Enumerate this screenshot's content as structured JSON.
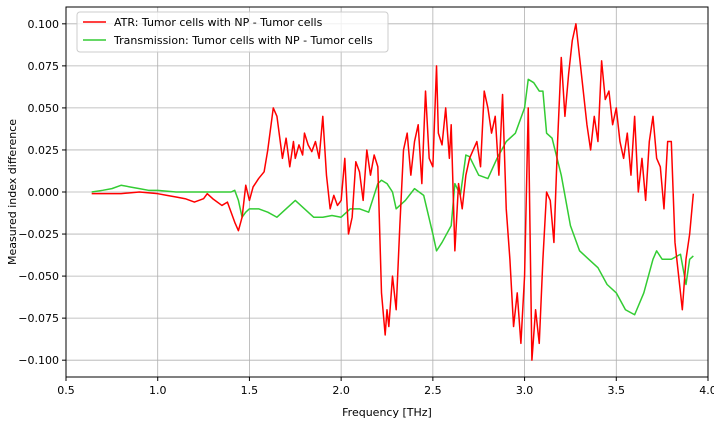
{
  "chart_data": {
    "type": "line",
    "title": "",
    "xlabel": "Frequency [THz]",
    "ylabel": "Measured index difference",
    "xlim": [
      0.5,
      4.0
    ],
    "ylim": [
      -0.11,
      0.11
    ],
    "x_ticks": [
      0.5,
      1.0,
      1.5,
      2.0,
      2.5,
      3.0,
      3.5,
      4.0
    ],
    "x_tick_labels": [
      "0.5",
      "1.0",
      "1.5",
      "2.0",
      "2.5",
      "3.0",
      "3.5",
      "4.0"
    ],
    "y_ticks": [
      -0.1,
      -0.075,
      -0.05,
      -0.025,
      0.0,
      0.025,
      0.05,
      0.075,
      0.1
    ],
    "y_tick_labels": [
      "−0.100",
      "−0.075",
      "−0.050",
      "−0.025",
      "0.000",
      "0.025",
      "0.050",
      "0.075",
      "0.100"
    ],
    "grid": true,
    "legend_position": "top-left",
    "series": [
      {
        "name": "ATR: Tumor cells with NP - Tumor cells",
        "color": "#ff0000",
        "x": [
          0.64,
          0.7,
          0.8,
          0.9,
          1.0,
          1.05,
          1.1,
          1.15,
          1.2,
          1.25,
          1.27,
          1.3,
          1.35,
          1.38,
          1.42,
          1.44,
          1.46,
          1.48,
          1.5,
          1.52,
          1.55,
          1.58,
          1.6,
          1.63,
          1.65,
          1.68,
          1.7,
          1.72,
          1.74,
          1.75,
          1.77,
          1.79,
          1.8,
          1.82,
          1.84,
          1.86,
          1.88,
          1.9,
          1.92,
          1.94,
          1.96,
          1.98,
          2.0,
          2.02,
          2.04,
          2.06,
          2.08,
          2.1,
          2.12,
          2.14,
          2.16,
          2.18,
          2.2,
          2.22,
          2.24,
          2.25,
          2.26,
          2.28,
          2.3,
          2.32,
          2.34,
          2.36,
          2.38,
          2.4,
          2.42,
          2.44,
          2.46,
          2.48,
          2.5,
          2.52,
          2.53,
          2.55,
          2.57,
          2.59,
          2.6,
          2.62,
          2.64,
          2.66,
          2.68,
          2.7,
          2.72,
          2.74,
          2.76,
          2.78,
          2.8,
          2.82,
          2.84,
          2.86,
          2.88,
          2.9,
          2.92,
          2.94,
          2.96,
          2.98,
          3.0,
          3.02,
          3.04,
          3.06,
          3.08,
          3.1,
          3.12,
          3.14,
          3.16,
          3.18,
          3.2,
          3.22,
          3.24,
          3.26,
          3.28,
          3.3,
          3.32,
          3.34,
          3.36,
          3.38,
          3.4,
          3.42,
          3.44,
          3.46,
          3.48,
          3.5,
          3.52,
          3.54,
          3.56,
          3.58,
          3.6,
          3.62,
          3.64,
          3.66,
          3.68,
          3.7,
          3.72,
          3.74,
          3.76,
          3.78,
          3.8,
          3.82,
          3.84,
          3.86,
          3.88,
          3.9,
          3.92
        ],
        "y": [
          -0.001,
          -0.001,
          -0.001,
          0.0,
          -0.001,
          -0.002,
          -0.003,
          -0.004,
          -0.006,
          -0.004,
          -0.001,
          -0.004,
          -0.008,
          -0.006,
          -0.018,
          -0.023,
          -0.015,
          0.004,
          -0.005,
          0.003,
          0.008,
          0.012,
          0.025,
          0.05,
          0.045,
          0.02,
          0.032,
          0.015,
          0.03,
          0.02,
          0.028,
          0.022,
          0.035,
          0.028,
          0.024,
          0.03,
          0.02,
          0.045,
          0.01,
          -0.01,
          -0.002,
          -0.008,
          -0.005,
          0.02,
          -0.025,
          -0.015,
          0.018,
          0.012,
          -0.005,
          0.025,
          0.01,
          0.022,
          0.015,
          -0.06,
          -0.085,
          -0.07,
          -0.08,
          -0.05,
          -0.07,
          -0.02,
          0.025,
          0.035,
          0.01,
          0.03,
          0.04,
          0.005,
          0.06,
          0.02,
          0.015,
          0.075,
          0.035,
          0.028,
          0.05,
          0.02,
          0.04,
          -0.035,
          0.005,
          -0.01,
          0.01,
          0.02,
          0.025,
          0.03,
          0.015,
          0.06,
          0.05,
          0.035,
          0.045,
          0.01,
          0.058,
          -0.01,
          -0.04,
          -0.08,
          -0.06,
          -0.09,
          -0.05,
          0.05,
          -0.1,
          -0.07,
          -0.09,
          -0.04,
          0.0,
          -0.005,
          -0.03,
          0.03,
          0.08,
          0.045,
          0.07,
          0.09,
          0.1,
          0.08,
          0.06,
          0.04,
          0.025,
          0.045,
          0.03,
          0.078,
          0.055,
          0.06,
          0.04,
          0.05,
          0.03,
          0.02,
          0.035,
          0.01,
          0.045,
          0.0,
          0.02,
          -0.005,
          0.03,
          0.045,
          0.02,
          0.015,
          -0.01,
          0.03,
          0.03,
          -0.03,
          -0.05,
          -0.07,
          -0.04,
          -0.025,
          -0.001
        ]
      },
      {
        "name": "Transmission: Tumor cells with NP - Tumor cells",
        "color": "#33cc33",
        "x": [
          0.64,
          0.7,
          0.75,
          0.8,
          0.85,
          0.9,
          0.95,
          1.0,
          1.1,
          1.2,
          1.3,
          1.4,
          1.42,
          1.44,
          1.46,
          1.48,
          1.5,
          1.55,
          1.6,
          1.65,
          1.7,
          1.75,
          1.8,
          1.85,
          1.9,
          1.95,
          2.0,
          2.05,
          2.1,
          2.15,
          2.2,
          2.22,
          2.25,
          2.28,
          2.3,
          2.35,
          2.4,
          2.45,
          2.5,
          2.52,
          2.55,
          2.6,
          2.62,
          2.65,
          2.68,
          2.7,
          2.75,
          2.8,
          2.85,
          2.9,
          2.95,
          3.0,
          3.02,
          3.05,
          3.08,
          3.1,
          3.12,
          3.15,
          3.2,
          3.25,
          3.3,
          3.35,
          3.4,
          3.45,
          3.5,
          3.55,
          3.6,
          3.65,
          3.7,
          3.72,
          3.75,
          3.8,
          3.85,
          3.88,
          3.9,
          3.92
        ],
        "y": [
          0.0,
          0.001,
          0.002,
          0.004,
          0.003,
          0.002,
          0.001,
          0.001,
          0.0,
          0.0,
          0.0,
          0.0,
          0.001,
          -0.005,
          -0.015,
          -0.012,
          -0.01,
          -0.01,
          -0.012,
          -0.015,
          -0.01,
          -0.005,
          -0.01,
          -0.015,
          -0.015,
          -0.014,
          -0.015,
          -0.01,
          -0.01,
          -0.012,
          0.005,
          0.007,
          0.005,
          0.0,
          -0.01,
          -0.005,
          0.002,
          -0.002,
          -0.025,
          -0.035,
          -0.03,
          -0.02,
          0.005,
          -0.002,
          0.022,
          0.021,
          0.01,
          0.008,
          0.02,
          0.03,
          0.035,
          0.05,
          0.067,
          0.065,
          0.06,
          0.06,
          0.035,
          0.032,
          0.01,
          -0.02,
          -0.035,
          -0.04,
          -0.045,
          -0.055,
          -0.06,
          -0.07,
          -0.073,
          -0.06,
          -0.04,
          -0.035,
          -0.04,
          -0.04,
          -0.037,
          -0.055,
          -0.04,
          -0.038
        ]
      }
    ]
  }
}
